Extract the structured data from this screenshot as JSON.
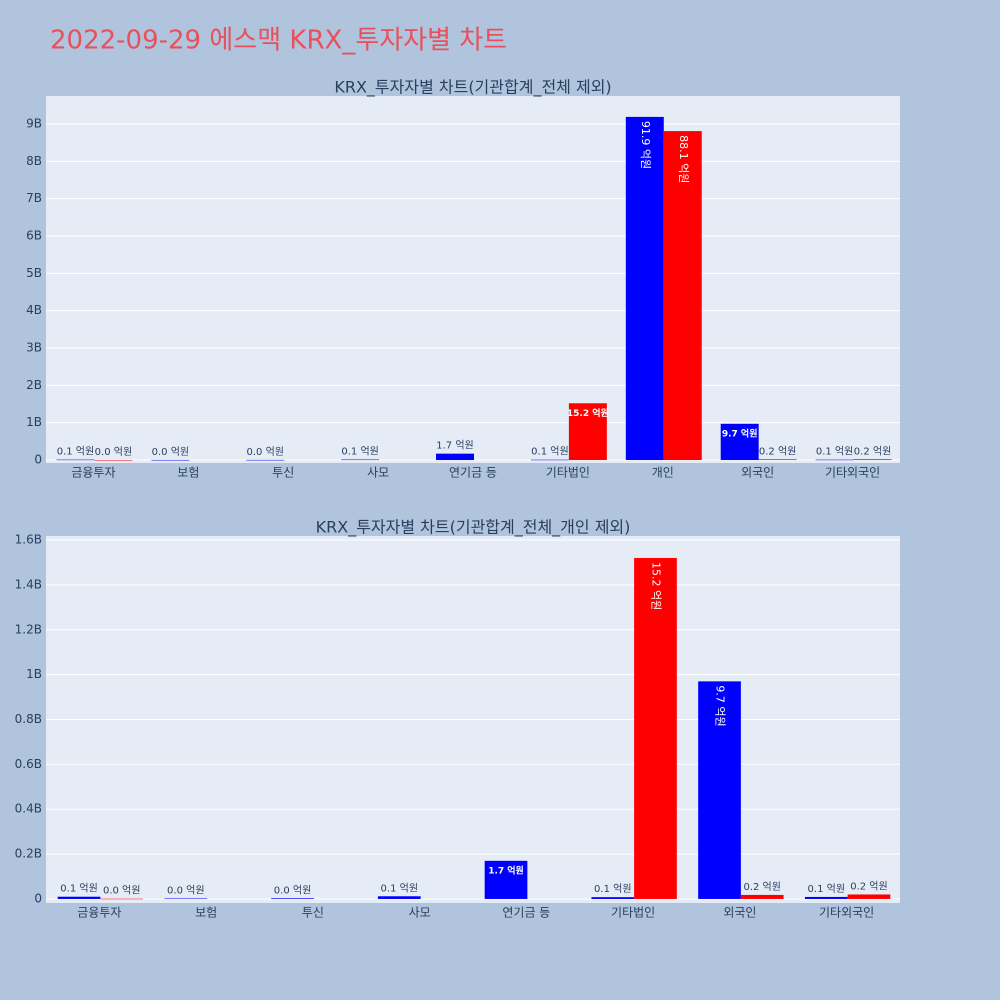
{
  "title": "2022-09-29 에스맥 KRX_투자자별 차트",
  "chart_data": [
    {
      "type": "bar",
      "title": "KRX_투자자별 차트(기관합계_전체 제외)",
      "categories": [
        "금융투자",
        "보험",
        "투신",
        "사모",
        "연기금 등",
        "기타법인",
        "개인",
        "외국인",
        "기타외국인"
      ],
      "series": [
        {
          "color": "#0000ff",
          "values": [
            10000000,
            2000000,
            3000000,
            12000000,
            170000000,
            8000000,
            9190000000,
            970000000,
            9000000
          ],
          "value_labels": [
            "0.1 억원",
            "0.0 억원",
            "0.0 억원",
            "0.1 억원",
            "1.7 억원",
            "0.1 억원",
            "91.9 억원",
            "9.7 억원",
            "0.1 억원"
          ]
        },
        {
          "color": "#ff0000",
          "values": [
            1000000,
            null,
            null,
            null,
            null,
            1520000000,
            8810000000,
            18000000,
            20000000
          ],
          "value_labels": [
            "0.0 억원",
            null,
            null,
            null,
            null,
            "15.2 억원",
            "88.1 억원",
            "0.2 억원",
            "0.2 억원"
          ]
        }
      ],
      "ylim": [
        -80000000,
        9750000000
      ],
      "yticks": [
        0,
        {
          "value": 1000000000,
          "label": "1B"
        },
        {
          "value": 2000000000,
          "label": "2B"
        },
        {
          "value": 3000000000,
          "label": "3B"
        },
        {
          "value": 4000000000,
          "label": "4B"
        },
        {
          "value": 5000000000,
          "label": "5B"
        },
        {
          "value": 6000000000,
          "label": "6B"
        },
        {
          "value": 7000000000,
          "label": "7B"
        },
        {
          "value": 8000000000,
          "label": "8B"
        },
        {
          "value": 9000000000,
          "label": "9B"
        }
      ],
      "grid": true
    },
    {
      "type": "bar",
      "title": "KRX_투자자별 차트(기관합계_전체_개인 제외)",
      "categories": [
        "금융투자",
        "보험",
        "투신",
        "사모",
        "연기금 등",
        "기타법인",
        "외국인",
        "기타외국인"
      ],
      "series": [
        {
          "color": "#0000ff",
          "values": [
            10000000,
            2000000,
            3000000,
            12000000,
            170000000,
            8000000,
            970000000,
            9000000
          ],
          "value_labels": [
            "0.1 억원",
            "0.0 억원",
            "0.0 억원",
            "0.1 억원",
            "1.7 억원",
            "0.1 억원",
            "9.7 억원",
            "0.1 억원"
          ]
        },
        {
          "color": "#ff0000",
          "values": [
            1000000,
            null,
            null,
            null,
            null,
            1520000000,
            18000000,
            20000000
          ],
          "value_labels": [
            "0.0 억원",
            null,
            null,
            null,
            null,
            "15.2 억원",
            "0.2 억원",
            "0.2 억원"
          ]
        }
      ],
      "ylim": [
        -18000000,
        1618000000
      ],
      "yticks": [
        0,
        {
          "value": 200000000,
          "label": "0.2B"
        },
        {
          "value": 400000000,
          "label": "0.4B"
        },
        {
          "value": 600000000,
          "label": "0.6B"
        },
        {
          "value": 800000000,
          "label": "0.8B"
        },
        {
          "value": 1000000000,
          "label": "1B"
        },
        {
          "value": 1200000000,
          "label": "1.2B"
        },
        {
          "value": 1400000000,
          "label": "1.4B"
        },
        {
          "value": 1600000000,
          "label": "1.6B"
        }
      ],
      "grid": true
    }
  ]
}
